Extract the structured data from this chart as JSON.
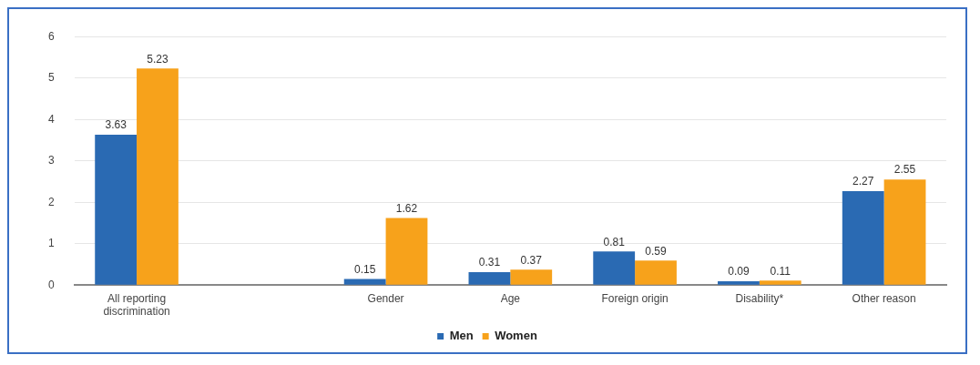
{
  "chart_data": {
    "type": "bar",
    "categories": [
      "All reporting discrimination",
      null,
      "Gender",
      "Age",
      "Foreign origin",
      "Disability*",
      "Other reason"
    ],
    "series": [
      {
        "name": "Men",
        "color": "#2a6ab3",
        "values": [
          3.63,
          null,
          0.15,
          0.31,
          0.81,
          0.09,
          2.27
        ]
      },
      {
        "name": "Women",
        "color": "#f7a21b",
        "values": [
          5.23,
          null,
          1.62,
          0.37,
          0.59,
          0.11,
          2.55
        ]
      }
    ],
    "ylim": [
      0,
      6
    ],
    "yticks": [
      0,
      1,
      2,
      3,
      4,
      5,
      6
    ],
    "grid": "y",
    "legend": "bottom",
    "data_labels": true
  }
}
